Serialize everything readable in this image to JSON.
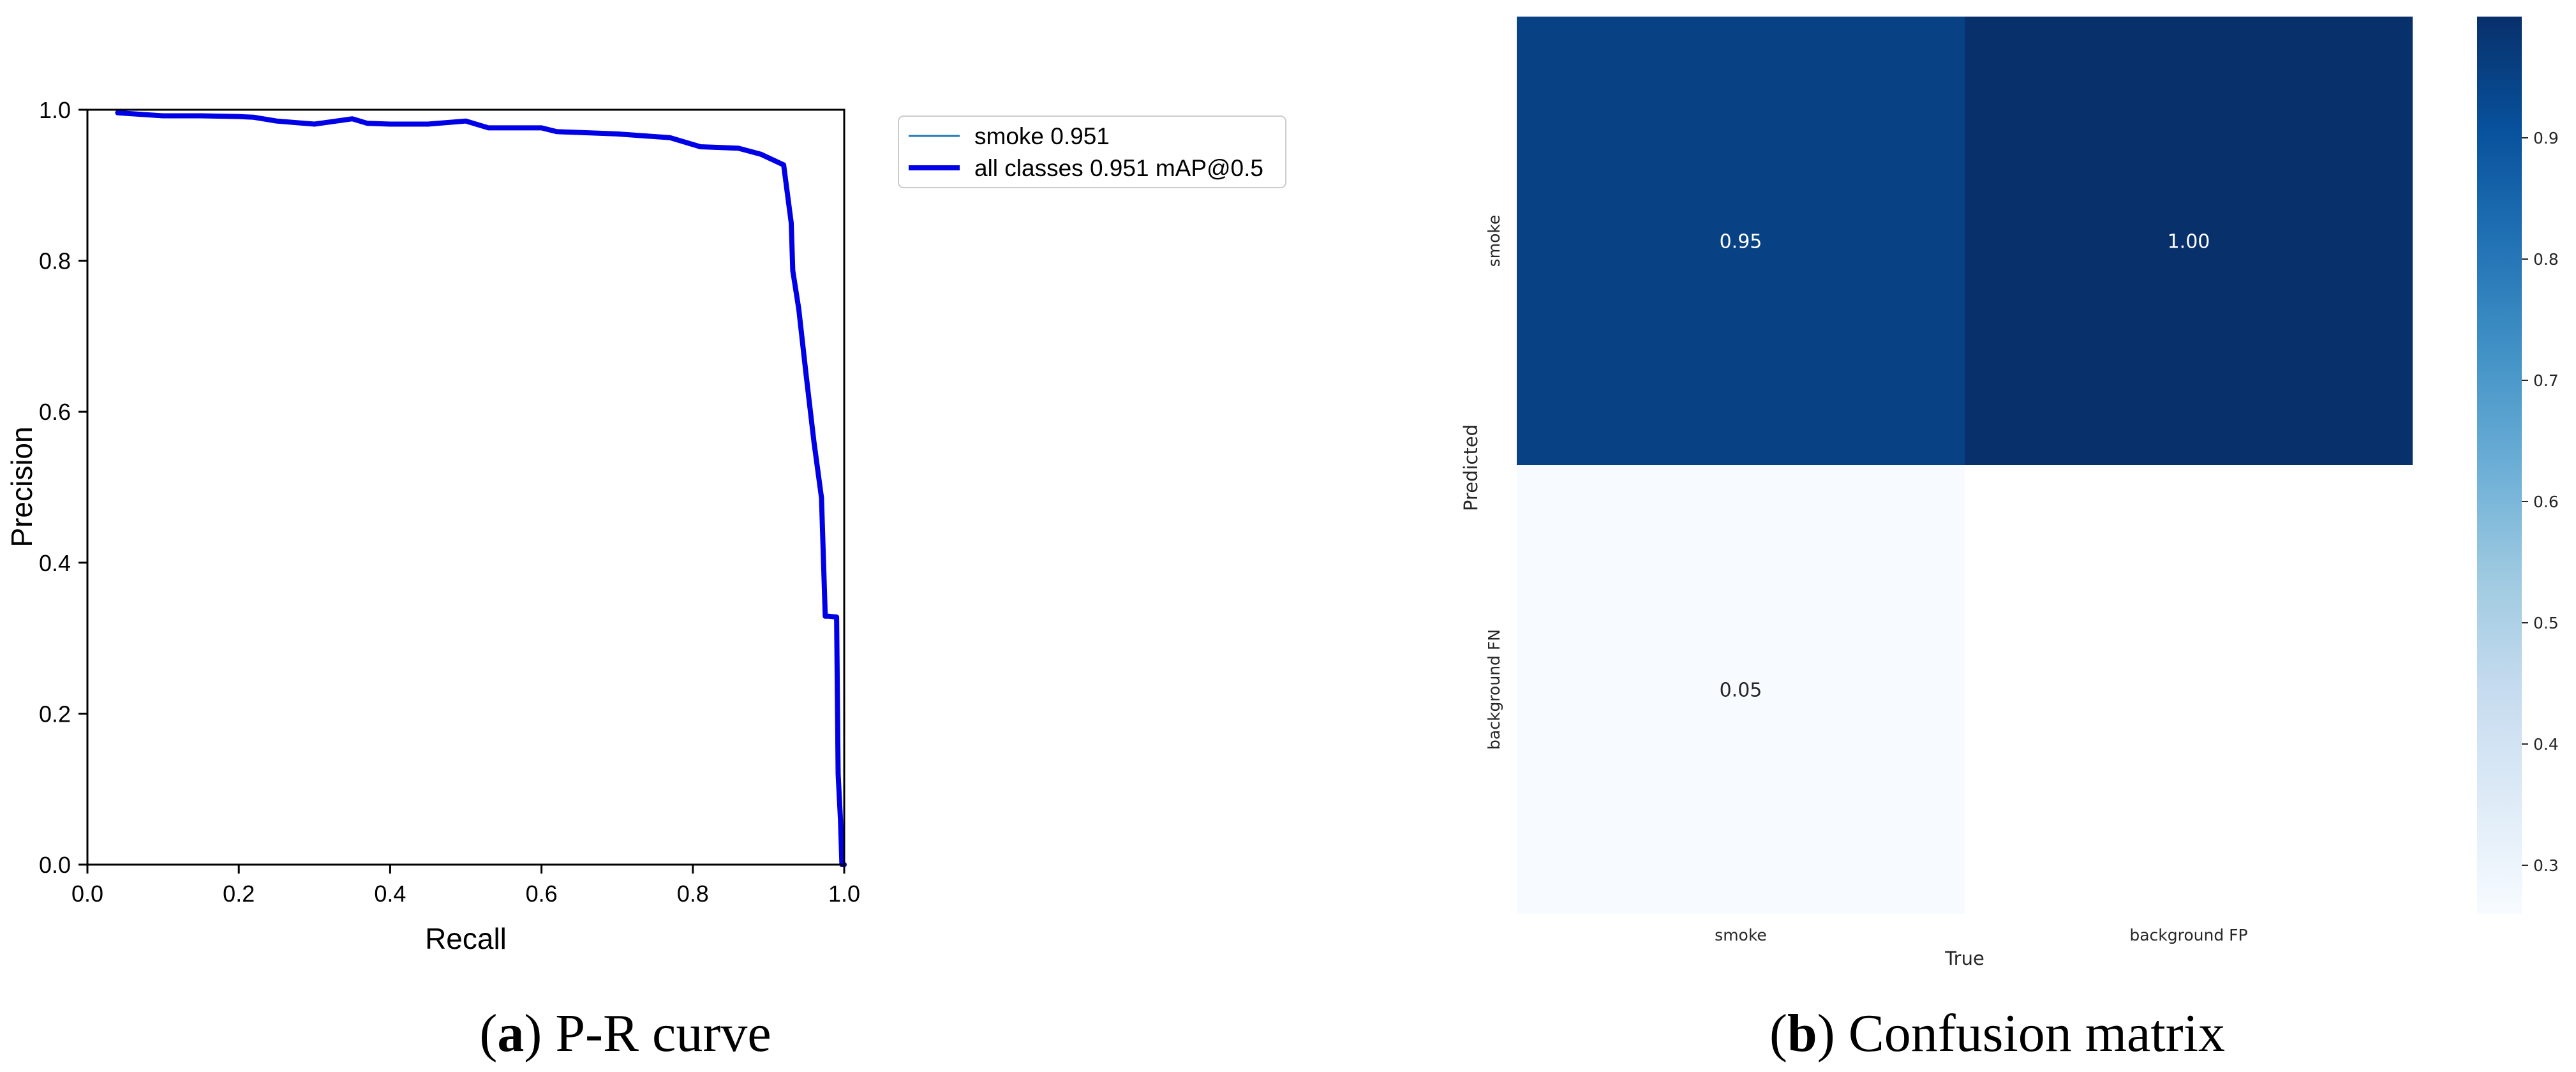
{
  "panels": {
    "a": {
      "letter": "a",
      "caption": "P-R curve"
    },
    "b": {
      "letter": "b",
      "caption": "Confusion matrix"
    }
  },
  "chart_data": [
    {
      "type": "line",
      "xlabel": "Recall",
      "ylabel": "Precision",
      "xlim": [
        0,
        1
      ],
      "ylim": [
        0,
        1
      ],
      "xticks": [
        "0.0",
        "0.2",
        "0.4",
        "0.6",
        "0.8",
        "1.0"
      ],
      "yticks": [
        "0.0",
        "0.2",
        "0.4",
        "0.6",
        "0.8",
        "1.0"
      ],
      "grid": false,
      "legend_position": "outside-right",
      "series": [
        {
          "name": "smoke 0.951",
          "color": "#1f77b4",
          "x": [
            0.04,
            0.1,
            0.15,
            0.2,
            0.22,
            0.25,
            0.3,
            0.35,
            0.37,
            0.4,
            0.45,
            0.5,
            0.53,
            0.6,
            0.62,
            0.7,
            0.77,
            0.81,
            0.86,
            0.89,
            0.92,
            0.93,
            0.932,
            0.94,
            0.95,
            0.96,
            0.97,
            0.975,
            0.98,
            0.99,
            0.992,
            0.995,
            0.997,
            1.0
          ],
          "y": [
            0.996,
            0.992,
            0.992,
            0.991,
            0.99,
            0.985,
            0.981,
            0.988,
            0.982,
            0.981,
            0.981,
            0.985,
            0.976,
            0.976,
            0.971,
            0.968,
            0.963,
            0.951,
            0.949,
            0.941,
            0.927,
            0.85,
            0.787,
            0.736,
            0.646,
            0.56,
            0.486,
            0.329,
            0.329,
            0.328,
            0.12,
            0.06,
            0.0,
            0.0
          ]
        },
        {
          "name": "all classes 0.951 mAP@0.5",
          "color": "#0000e6",
          "x": [
            0.04,
            0.1,
            0.15,
            0.2,
            0.22,
            0.25,
            0.3,
            0.35,
            0.37,
            0.4,
            0.45,
            0.5,
            0.53,
            0.6,
            0.62,
            0.7,
            0.77,
            0.81,
            0.86,
            0.89,
            0.92,
            0.93,
            0.932,
            0.94,
            0.95,
            0.96,
            0.97,
            0.975,
            0.98,
            0.99,
            0.992,
            0.995,
            0.997,
            1.0
          ],
          "y": [
            0.996,
            0.992,
            0.992,
            0.991,
            0.99,
            0.985,
            0.981,
            0.988,
            0.982,
            0.981,
            0.981,
            0.985,
            0.976,
            0.976,
            0.971,
            0.968,
            0.963,
            0.951,
            0.949,
            0.941,
            0.927,
            0.85,
            0.787,
            0.736,
            0.646,
            0.56,
            0.486,
            0.329,
            0.329,
            0.328,
            0.12,
            0.06,
            0.0,
            0.0
          ]
        }
      ]
    },
    {
      "type": "heatmap",
      "xlabel": "True",
      "ylabel": "Predicted",
      "x_categories": [
        "smoke",
        "background FP"
      ],
      "y_categories": [
        "smoke",
        "background FN"
      ],
      "values": [
        [
          0.95,
          1.0
        ],
        [
          0.05,
          null
        ]
      ],
      "colormap": "Blues",
      "colorbar_range": [
        0.26,
        1.0
      ],
      "colorbar_ticks": [
        "0.3",
        "0.4",
        "0.5",
        "0.6",
        "0.7",
        "0.8",
        "0.9"
      ],
      "colorbar_tick_values": [
        0.3,
        0.4,
        0.5,
        0.6,
        0.7,
        0.8,
        0.9
      ]
    }
  ]
}
